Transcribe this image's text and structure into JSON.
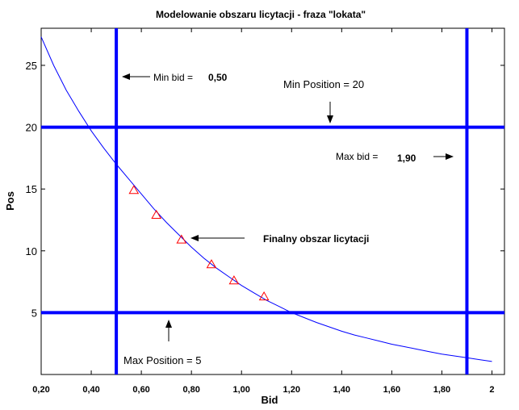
{
  "chart_data": {
    "type": "line",
    "title": "Modelowanie obszaru licytacji - fraza \"lokata\"",
    "xlabel": "Bid",
    "ylabel": "Pos",
    "xlim": [
      0.2,
      2.05
    ],
    "ylim": [
      0,
      28
    ],
    "x_ticks": [
      {
        "value": 0.2,
        "label": "0,20"
      },
      {
        "value": 0.4,
        "label": "0,40"
      },
      {
        "value": 0.6,
        "label": "0,60"
      },
      {
        "value": 0.8,
        "label": "0,80"
      },
      {
        "value": 1.0,
        "label": "1,00"
      },
      {
        "value": 1.2,
        "label": "1,20"
      },
      {
        "value": 1.4,
        "label": "1,40"
      },
      {
        "value": 1.6,
        "label": "1,60"
      },
      {
        "value": 1.8,
        "label": "1,80"
      },
      {
        "value": 2.0,
        "label": "2"
      }
    ],
    "y_ticks": [
      {
        "value": 5,
        "label": "5"
      },
      {
        "value": 10,
        "label": "10"
      },
      {
        "value": 15,
        "label": "15"
      },
      {
        "value": 20,
        "label": "20"
      },
      {
        "value": 25,
        "label": "25"
      }
    ],
    "grid": false,
    "series": [
      {
        "type": "line",
        "color": "#0000ff",
        "x": [
          0.2,
          0.25,
          0.3,
          0.35,
          0.4,
          0.45,
          0.5,
          0.55,
          0.6,
          0.65,
          0.7,
          0.75,
          0.8,
          0.85,
          0.9,
          0.95,
          1.0,
          1.05,
          1.1,
          1.15,
          1.2,
          1.25,
          1.3,
          1.35,
          1.4,
          1.45,
          1.5,
          1.55,
          1.6,
          1.65,
          1.7,
          1.75,
          1.8,
          1.85,
          1.9,
          1.95,
          2.0
        ],
        "y": [
          27.3,
          25.0,
          23.0,
          21.3,
          19.7,
          18.3,
          17.0,
          15.8,
          14.6,
          13.4,
          12.3,
          11.3,
          10.3,
          9.4,
          8.6,
          7.9,
          7.2,
          6.6,
          6.0,
          5.5,
          5.0,
          4.6,
          4.2,
          3.85,
          3.5,
          3.2,
          2.95,
          2.7,
          2.45,
          2.25,
          2.05,
          1.85,
          1.65,
          1.5,
          1.35,
          1.2,
          1.05
        ]
      },
      {
        "type": "scatter",
        "marker": "triangle",
        "color": "#ff0000",
        "x": [
          0.57,
          0.66,
          0.76,
          0.88,
          0.97,
          1.09
        ],
        "y": [
          14.9,
          12.9,
          10.9,
          8.9,
          7.6,
          6.3
        ]
      }
    ],
    "reference_lines": [
      {
        "orientation": "vertical",
        "value": 0.5,
        "color": "#0000ff"
      },
      {
        "orientation": "vertical",
        "value": 1.9,
        "color": "#0000ff"
      },
      {
        "orientation": "horizontal",
        "value": 20,
        "color": "#0000ff"
      },
      {
        "orientation": "horizontal",
        "value": 5,
        "color": "#0000ff"
      }
    ],
    "annotations": {
      "min_bid_label": "Min bid =",
      "min_bid_value": "0,50",
      "min_position": "Min Position = 20",
      "max_bid_label": "Max bid =",
      "max_bid_value": "1,90",
      "final_region": "Finalny obszar licytacji",
      "max_position": "Max Position = 5"
    }
  }
}
